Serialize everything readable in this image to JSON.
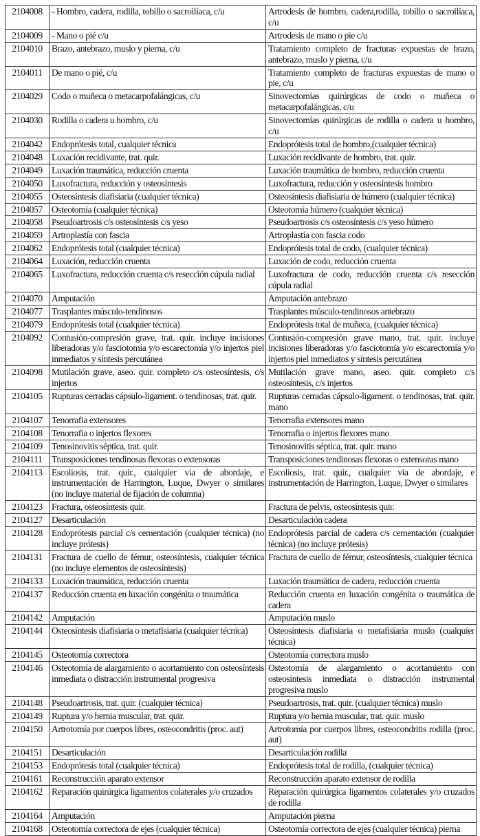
{
  "rows": [
    {
      "code": "2104008",
      "desc": "- Hombro, cadera, rodilla, tobillo o sacroilíaca, c/u",
      "full": "Artrodesis de hombro, cadera,rodilla, tobillo o sacroilíaca, c/u"
    },
    {
      "code": "2104009",
      "desc": "- Mano o pié c/u",
      "full": "Artrodesis de mano o pie c/u"
    },
    {
      "code": "2104010",
      "desc": "Brazo, antebrazo,  muslo y pierna, c/u",
      "full": "Tratamiento completo de fracturas expuestas de brazo, antebrazo, muslo y pierna, c/u"
    },
    {
      "code": "2104011",
      "desc": "De mano o pié, c/u",
      "full": "Tratamiento completo de fracturas expuestas de mano o pie, c/u"
    },
    {
      "code": "2104029",
      "desc": "Codo o muñeca o metacarpofalángicas, c/u",
      "full": "Sinovectomías quirúrgicas de codo o muñeca o metacarpofalángicas, c/u"
    },
    {
      "code": "2104030",
      "desc": "Rodilla o cadera u hombro, c/u",
      "full": "Sinovectomías quirúrgicas de rodilla o cadera u hombro, c/u"
    },
    {
      "code": "2104042",
      "desc": "Endoprótesis total, cualquier técnica",
      "full": "Endoprótesis total de hombro,(cualquier técnica)"
    },
    {
      "code": "2104048",
      "desc": "Luxación recidivante, trat. quir.",
      "full": "Luxación recidivante de hombro, trat. quir."
    },
    {
      "code": "2104049",
      "desc": "Luxación traumática, reducción cruenta",
      "full": "Luxación traumática de hombro, reducción cruenta"
    },
    {
      "code": "2104050",
      "desc": "Luxofractura, reducción y osteosíntesis",
      "full": "Luxofractura, reducción y osteosíntesis hombro"
    },
    {
      "code": "2104055",
      "desc": "Osteosíntesis diafisiaria (cualquier técnica)",
      "full": "Osteosíntesis diafisiaria de húmero (cualquier técnica)"
    },
    {
      "code": "2104057",
      "desc": "Osteotomía (cualquier técnica)",
      "full": "Osteotomía húmero (cualquier técnica)"
    },
    {
      "code": "2104058",
      "desc": "Pseudoartrosis c/s osteosíntesis c/s yeso",
      "full": "Pseudoartrosis c/s osteosíntesis c/s yeso húmero"
    },
    {
      "code": "2104059",
      "desc": "Artroplastía con fascia",
      "full": "Artroplastía con fascia codo"
    },
    {
      "code": "2104062",
      "desc": "Endoprótesis total (cualquier técnica)",
      "full": "Endoprótesis total de codo, (cualquier técnica)"
    },
    {
      "code": "2104064",
      "desc": "Luxación, reducción cruenta",
      "full": "Luxación de codo, reducción cruenta"
    },
    {
      "code": "2104065",
      "desc": "Luxofractura, reducción cruenta c/s resección cúpula radial",
      "full": "Luxofractura de codo, reducción cruenta c/s resección cúpula radial"
    },
    {
      "code": "2104070",
      "desc": "Amputación",
      "full": "Amputación antebrazo"
    },
    {
      "code": "2104077",
      "desc": "Trasplantes músculo-tendinosos",
      "full": "Trasplantes músculo-tendinosos antebrazo"
    },
    {
      "code": "2104079",
      "desc": "Endoprótesis total (cualquier técnica)",
      "full": "Endoprótesis total de muñeca, (cualquier técnica)"
    },
    {
      "code": "2104092",
      "desc": "Contusión-compresión grave, trat. quir. incluye incisiones liberadoras y/o fasciotomía y/o escarectomía y/o injertos piel inmediatos y síntesis percutánea",
      "full": "Contusión-compresión grave mano, trat. quir. incluye incisiones liberadoras y/o fasciotomía y/o escarectomía y/o injertos piel inmediatos y síntesis percutánea"
    },
    {
      "code": "2104098",
      "desc": "Mutilación grave, aseo. quir. completo c/s osteosíntesis, c/s injertos",
      "full": "Mutilación grave mano, aseo. quir. completo c/s osteosíntesis, c/s injertos"
    },
    {
      "code": "2104105",
      "desc": "Rupturas cerradas cápsulo-ligament. o tendinosas, trat. quir.",
      "full": "Rupturas cerradas cápsulo-ligament. o tendinosas, trat. quir. mano"
    },
    {
      "code": "2104107",
      "desc": "Tenorrafia extensores",
      "full": "Tenorrafia extensores mano"
    },
    {
      "code": "2104108",
      "desc": "Tenorrafia o injertos flexores",
      "full": "Tenorrafia o injertos flexores mano"
    },
    {
      "code": "2104109",
      "desc": "Tenosinovitis séptica, trat. quir.",
      "full": "Tenosinovitis séptica, trat. quir. mano"
    },
    {
      "code": "2104111",
      "desc": "Transposiciones tendinosas flexoras o extensoras",
      "full": "Transposiciones tendinosas flexoras o extensoras mano"
    },
    {
      "code": "2104113",
      "desc": "Escoliosis, trat. quir., cualquier vía de abordaje, e instrumentación de Harrington,  Luque, Dwyer o similares (no incluye material de fijación de columna)",
      "full": "Escoliosis, trat. quir., cualquier vía de abordaje, e instrumentación de Harrington,  Luque, Dwyer o similares"
    },
    {
      "code": "2104123",
      "desc": "Fractura, osteosíntesis quir.",
      "full": "Fractura de pelvis, osteosíntesis quir."
    },
    {
      "code": "2104127",
      "desc": "Desarticulación",
      "full": "Desarticulación cadera"
    },
    {
      "code": "2104128",
      "desc": "Endoprótesis parcial c/s cementación (cualquier técnica) (no incluye prótesis)",
      "full": "Endoprótesis parcial de cadera c/s cementación (cualquier técnica) (no incluye prótesis)"
    },
    {
      "code": "2104131",
      "desc": "Fractura de cuello de fémur, osteosíntesis, cualquier técnica (no incluye elementos de osteosíntesis)",
      "full": "Fractura de cuello de fémur, osteosíntesis, cualquier técnica"
    },
    {
      "code": "2104133",
      "desc": "Luxación traumática, reducción cruenta",
      "full": "Luxación traumática de cadera, reducción cruenta"
    },
    {
      "code": "2104137",
      "desc": "Reducción cruenta en luxación congénita o traumática",
      "full": "Reducción cruenta en luxación congénita o traumática de cadera"
    },
    {
      "code": "2104142",
      "desc": "Amputación",
      "full": "Amputación muslo"
    },
    {
      "code": "2104144",
      "desc": "Osteosíntesis diafisiaria o metafisiaria (cualquier técnica)",
      "full": "Osteosíntesis diafisiaria o metafisiaria muslo (cualquier técnica)"
    },
    {
      "code": "2104145",
      "desc": "Osteotomía correctora",
      "full": "Osteotomía correctora muslo"
    },
    {
      "code": "2104146",
      "desc": "Osteotomía de alargamiento o acortamiento con osteosíntesis inmediata o distracción instrumental progresiva",
      "full": "Osteotomía de alargamiento o acortamiento con osteosíntesis inmediata o distracción instrumental progresiva muslo"
    },
    {
      "code": "2104148",
      "desc": "Pseudoartrosis, trat. quir. (cualquier técnica)",
      "full": "Pseudoartrosis, trat. quir. (cualquier técnica) muslo"
    },
    {
      "code": "2104149",
      "desc": "Ruptura y/o hernia muscular, trat. quir.",
      "full": "Ruptura y/o hernia muscular, trat. quir. muslo"
    },
    {
      "code": "2104150",
      "desc": "Artrotomía por cuerpos libres, osteocondritis (proc. aut)",
      "full": "Artrotomía por cuerpos libres, osteocondritis rodilla (proc. aut)"
    },
    {
      "code": "2104151",
      "desc": "Desarticulación",
      "full": "Desarticulación rodilla"
    },
    {
      "code": "2104153",
      "desc": "Endoprótesis total (cualquier técnica)",
      "full": "Endoprótesis total de rodilla, (cualquier técnica)"
    },
    {
      "code": "2104161",
      "desc": "Reconstrucción aparato extensor",
      "full": "Reconstrucción aparato extensor de rodilla"
    },
    {
      "code": "2104162",
      "desc": "Reparación quirúrgica ligamentos colaterales y/o cruzados",
      "full": "Reparación quirúrgica ligamentos colaterales y/o cruzados de rodilla"
    },
    {
      "code": "2104164",
      "desc": "Amputación",
      "full": "Amputación pierna"
    },
    {
      "code": "2104168",
      "desc": "Osteotomía correctora de ejes  (cualquier técnica)",
      "full": "Osteotomía correctora de ejes  (cualquier técnica) pierna"
    }
  ]
}
